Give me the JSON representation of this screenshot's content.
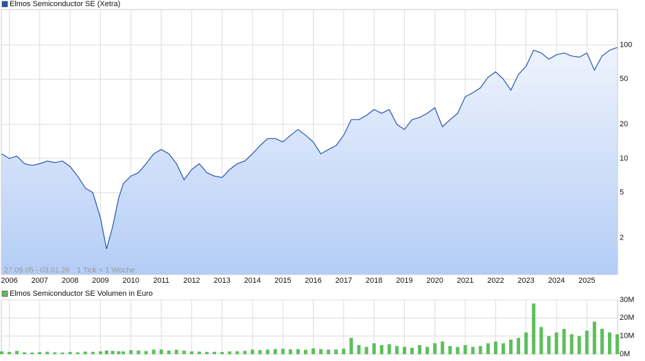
{
  "chart_data": [
    {
      "type": "line",
      "series": [
        {
          "name": "Elmos Semiconductor SE (Xetra)",
          "color": "#2155b0",
          "values": [
            11,
            10,
            10.5,
            9,
            8.7,
            9,
            9.5,
            9.2,
            9.5,
            8.5,
            7,
            5.5,
            5,
            3,
            1.6,
            2.5,
            4.5,
            6,
            7,
            7.5,
            9,
            11,
            12,
            11,
            9,
            6.5,
            8,
            9,
            7.5,
            7,
            6.8,
            8,
            9,
            9.5,
            11,
            13,
            15,
            15,
            14,
            16,
            18,
            16,
            14,
            11,
            12,
            13,
            16,
            22,
            22,
            24,
            27,
            25,
            27,
            20,
            18,
            22,
            23,
            25,
            28,
            19,
            22,
            25,
            35,
            38,
            42,
            52,
            58,
            50,
            40,
            55,
            65,
            90,
            85,
            75,
            82,
            85,
            80,
            78,
            85,
            60,
            80,
            90,
            95
          ]
        }
      ],
      "x": [
        2005.75,
        2006,
        2006.25,
        2006.5,
        2006.75,
        2007,
        2007.25,
        2007.5,
        2007.75,
        2008,
        2008.25,
        2008.5,
        2008.75,
        2009,
        2009.2,
        2009.4,
        2009.6,
        2009.75,
        2010,
        2010.25,
        2010.5,
        2010.75,
        2011,
        2011.25,
        2011.5,
        2011.75,
        2012,
        2012.25,
        2012.5,
        2012.75,
        2013,
        2013.25,
        2013.5,
        2013.75,
        2014,
        2014.25,
        2014.5,
        2014.75,
        2015,
        2015.25,
        2015.5,
        2015.75,
        2016,
        2016.25,
        2016.5,
        2016.75,
        2017,
        2017.25,
        2017.5,
        2017.75,
        2018,
        2018.25,
        2018.5,
        2018.75,
        2019,
        2019.25,
        2019.5,
        2019.75,
        2020,
        2020.25,
        2020.5,
        2020.75,
        2021,
        2021.25,
        2021.5,
        2021.75,
        2022,
        2022.25,
        2022.5,
        2022.75,
        2023,
        2023.25,
        2023.5,
        2023.75,
        2024,
        2024.25,
        2024.5,
        2024.75,
        2025,
        2025.25,
        2025.5,
        2025.75,
        2026
      ],
      "xlim": [
        2005.74,
        2026.01
      ],
      "xticks": [
        2006,
        2007,
        2008,
        2009,
        2010,
        2011,
        2012,
        2013,
        2014,
        2015,
        2016,
        2017,
        2018,
        2019,
        2020,
        2021,
        2022,
        2023,
        2024,
        2025
      ],
      "ylim": [
        0.95,
        205
      ],
      "yticks": [
        2,
        5,
        10,
        20,
        50,
        100
      ],
      "log_scale": true,
      "grid": true,
      "date_range": "27.09.05 - 03.01.26",
      "tick_note": "1 Tick = 1 Woche"
    },
    {
      "type": "bar",
      "series": [
        {
          "name": "Elmos Semiconductor SE Volumen in Euro",
          "color": "#5cbf5c",
          "values": [
            1500000,
            1200000,
            1800000,
            1000000,
            900000,
            1100000,
            1300000,
            1000000,
            900000,
            1200000,
            1000000,
            1400000,
            1300000,
            1500000,
            2000000,
            1800000,
            1600000,
            1500000,
            2200000,
            2000000,
            1700000,
            2500000,
            2600000,
            2000000,
            2400000,
            2000000,
            1500000,
            1400000,
            1200000,
            1300000,
            1200000,
            1500000,
            1600000,
            1800000,
            2500000,
            2200000,
            2500000,
            2800000,
            3000000,
            2600000,
            2800000,
            2400000,
            3200000,
            2800000,
            2500000,
            2600000,
            3000000,
            9000000,
            5000000,
            4000000,
            6000000,
            5000000,
            5500000,
            4500000,
            4000000,
            3500000,
            5000000,
            4000000,
            6000000,
            7000000,
            4500000,
            4000000,
            5000000,
            4000000,
            4500000,
            6000000,
            7000000,
            6000000,
            8000000,
            9000000,
            12000000,
            28000000,
            15000000,
            10000000,
            12000000,
            14000000,
            11000000,
            10000000,
            13000000,
            18000000,
            14000000,
            12000000,
            11000000
          ]
        }
      ],
      "x": [
        2005.75,
        2006,
        2006.25,
        2006.5,
        2006.75,
        2007,
        2007.25,
        2007.5,
        2007.75,
        2008,
        2008.25,
        2008.5,
        2008.75,
        2009,
        2009.2,
        2009.4,
        2009.6,
        2009.75,
        2010,
        2010.25,
        2010.5,
        2010.75,
        2011,
        2011.25,
        2011.5,
        2011.75,
        2012,
        2012.25,
        2012.5,
        2012.75,
        2013,
        2013.25,
        2013.5,
        2013.75,
        2014,
        2014.25,
        2014.5,
        2014.75,
        2015,
        2015.25,
        2015.5,
        2015.75,
        2016,
        2016.25,
        2016.5,
        2016.75,
        2017,
        2017.25,
        2017.5,
        2017.75,
        2018,
        2018.25,
        2018.5,
        2018.75,
        2019,
        2019.25,
        2019.5,
        2019.75,
        2020,
        2020.25,
        2020.5,
        2020.75,
        2021,
        2021.25,
        2021.5,
        2021.75,
        2022,
        2022.25,
        2022.5,
        2022.75,
        2023,
        2023.25,
        2023.5,
        2023.75,
        2024,
        2024.25,
        2024.5,
        2024.75,
        2025,
        2025.25,
        2025.5,
        2025.75,
        2026
      ],
      "xlim": [
        2005.74,
        2026.01
      ],
      "ylim": [
        0,
        30000000
      ],
      "yticks": [
        {
          "value": 0,
          "label": "0M"
        },
        {
          "value": 10000000,
          "label": "10M"
        },
        {
          "value": 20000000,
          "label": "20M"
        },
        {
          "value": 30000000,
          "label": "30M"
        }
      ],
      "grid": true
    }
  ]
}
